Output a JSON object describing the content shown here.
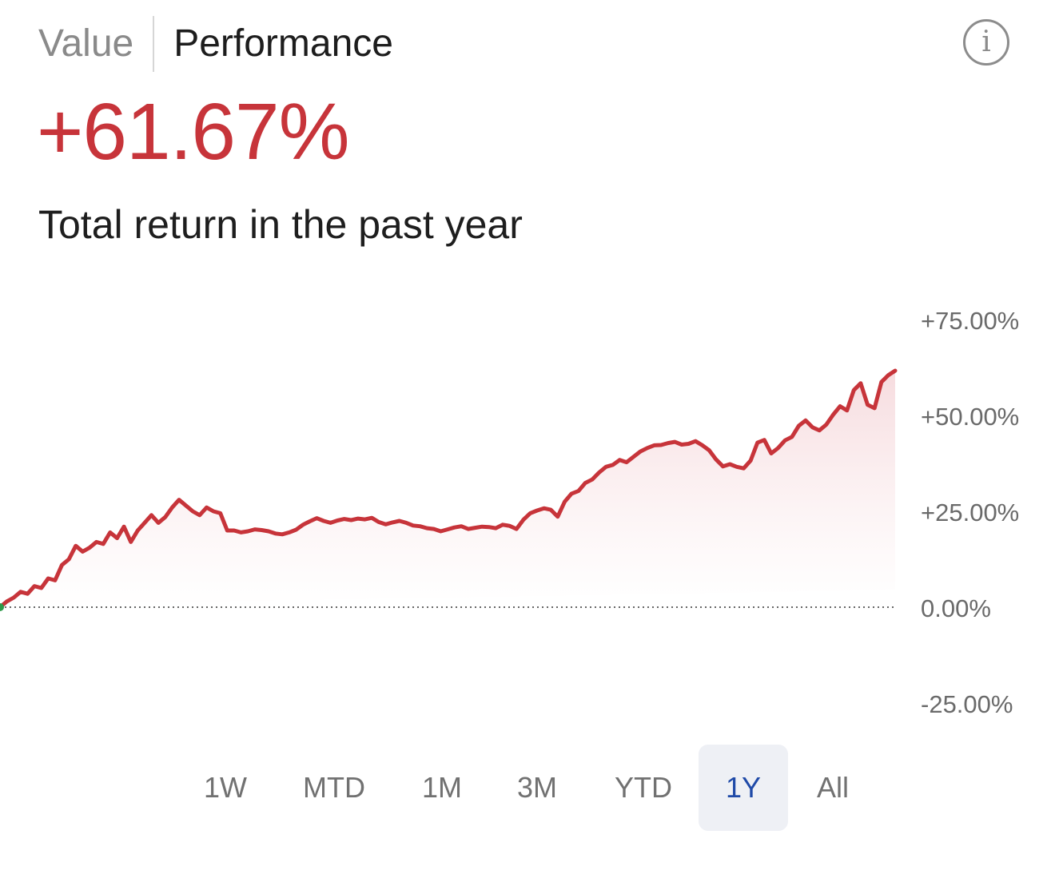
{
  "header": {
    "tabs": [
      {
        "label": "Value",
        "active": false
      },
      {
        "label": "Performance",
        "active": true
      }
    ],
    "info_icon": "info-icon"
  },
  "summary": {
    "value": "+61.67%",
    "caption": "Total return in the past year"
  },
  "chart_data": {
    "type": "area",
    "y_ticks": [
      "+75.00%",
      "+50.00%",
      "+25.00%",
      "0.00%",
      "-25.00%"
    ],
    "ylim": [
      -25,
      75
    ],
    "baseline": 0,
    "grid": false,
    "line_color": "#c7343a",
    "fill_color": "#f6dadd",
    "values": [
      0,
      1.5,
      2.5,
      4,
      3.5,
      5.5,
      5,
      7.5,
      7,
      11,
      12.5,
      16,
      14.5,
      15.5,
      17,
      16.5,
      19.5,
      18,
      21,
      17,
      20,
      22,
      24,
      22,
      23.5,
      26,
      28,
      26.5,
      25,
      24,
      26,
      25,
      24.5,
      20,
      20,
      19.5,
      19.8,
      20.3,
      20.1,
      19.8,
      19.2,
      19,
      19.5,
      20.2,
      21.5,
      22.4,
      23.2,
      22.5,
      22,
      22.6,
      23,
      22.7,
      23.1,
      22.9,
      23.3,
      22.2,
      21.6,
      22.1,
      22.5,
      22,
      21.3,
      21.1,
      20.6,
      20.4,
      19.8,
      20.3,
      20.8,
      21.1,
      20.4,
      20.7,
      21,
      20.9,
      20.6,
      21.5,
      21.2,
      20.4,
      22.8,
      24.5,
      25.2,
      25.8,
      25.4,
      23.6,
      27.5,
      29.6,
      30.3,
      32.4,
      33.3,
      35.1,
      36.6,
      37.1,
      38.4,
      37.8,
      39.2,
      40.6,
      41.5,
      42.2,
      42.3,
      42.8,
      43.1,
      42.4,
      42.6,
      43.3,
      42.2,
      40.9,
      38.5,
      36.7,
      37.3,
      36.6,
      36.2,
      38.2,
      42.9,
      43.6,
      40.1,
      41.5,
      43.5,
      44.4,
      47.3,
      48.7,
      46.9,
      46.1,
      47.6,
      50.2,
      52.4,
      51.3,
      56.6,
      58.4,
      52.8,
      51.9,
      58.7,
      60.5,
      61.67
    ],
    "time_ranges": [
      "1W",
      "MTD",
      "1M",
      "3M",
      "YTD",
      "1Y",
      "All"
    ],
    "selected_range": "1Y"
  }
}
